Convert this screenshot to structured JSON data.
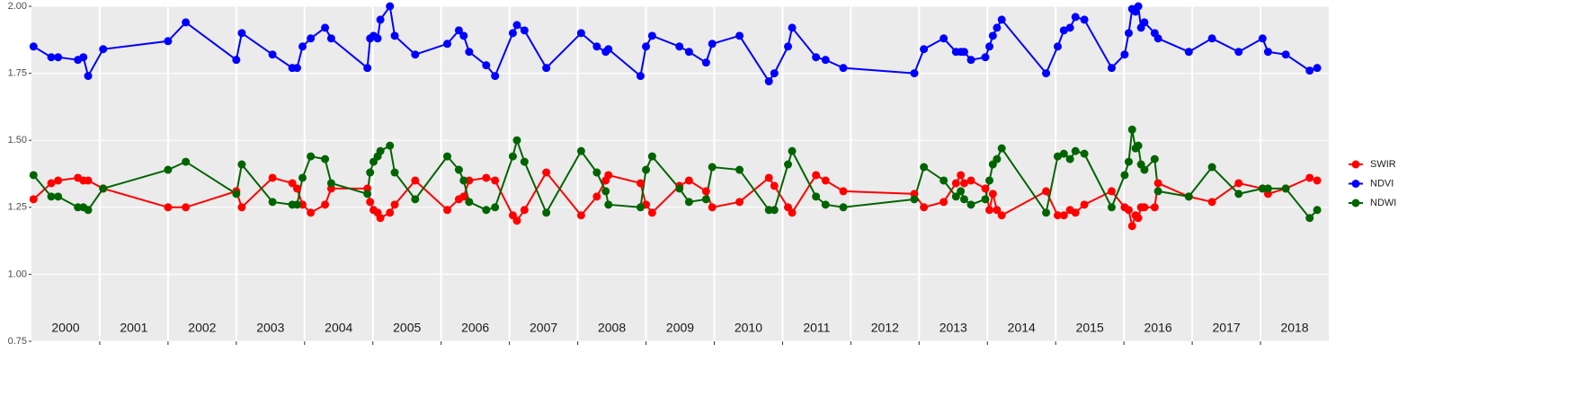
{
  "chart_data": {
    "type": "line",
    "x": [
      2000.03,
      2000.29,
      2000.39,
      2000.68,
      2000.76,
      2000.83,
      2001.05,
      2002.0,
      2002.26,
      2003.0,
      2003.08,
      2003.53,
      2003.82,
      2003.89,
      2003.97,
      2004.09,
      2004.3,
      2004.39,
      2004.92,
      2004.96,
      2005.01,
      2005.07,
      2005.11,
      2005.25,
      2005.32,
      2005.62,
      2006.09,
      2006.26,
      2006.33,
      2006.41,
      2006.66,
      2006.79,
      2007.05,
      2007.11,
      2007.22,
      2007.54,
      2008.05,
      2008.28,
      2008.41,
      2008.45,
      2008.92,
      2009.0,
      2009.09,
      2009.49,
      2009.63,
      2009.88,
      2009.97,
      2010.37,
      2010.8,
      2010.88,
      2011.08,
      2011.14,
      2011.49,
      2011.63,
      2011.89,
      2012.93,
      2013.07,
      2013.36,
      2013.54,
      2013.61,
      2013.66,
      2013.76,
      2013.97,
      2014.03,
      2014.08,
      2014.14,
      2014.21,
      2014.86,
      2015.03,
      2015.12,
      2015.21,
      2015.29,
      2015.42,
      2015.82,
      2016.01,
      2016.07,
      2016.12,
      2016.17,
      2016.21,
      2016.25,
      2016.3,
      2016.45,
      2016.5,
      2016.95,
      2017.29,
      2017.68,
      2018.03,
      2018.11,
      2018.37,
      2018.72,
      2018.83
    ],
    "series": [
      {
        "name": "SWIR",
        "color": "#ff0000",
        "values": [
          1.28,
          1.34,
          1.35,
          1.36,
          1.35,
          1.35,
          1.32,
          1.25,
          1.25,
          1.31,
          1.25,
          1.36,
          1.34,
          1.32,
          1.26,
          1.23,
          1.26,
          1.32,
          1.32,
          1.27,
          1.24,
          1.23,
          1.21,
          1.23,
          1.26,
          1.35,
          1.24,
          1.28,
          1.29,
          1.35,
          1.36,
          1.35,
          1.22,
          1.2,
          1.24,
          1.38,
          1.22,
          1.29,
          1.35,
          1.37,
          1.34,
          1.26,
          1.23,
          1.33,
          1.35,
          1.31,
          1.25,
          1.27,
          1.36,
          1.33,
          1.25,
          1.23,
          1.37,
          1.35,
          1.31,
          1.3,
          1.25,
          1.27,
          1.34,
          1.37,
          1.34,
          1.35,
          1.32,
          1.24,
          1.3,
          1.24,
          1.22,
          1.31,
          1.22,
          1.22,
          1.24,
          1.23,
          1.26,
          1.31,
          1.25,
          1.24,
          1.18,
          1.22,
          1.21,
          1.25,
          1.25,
          1.25,
          1.34,
          1.29,
          1.27,
          1.34,
          1.32,
          1.3,
          1.32,
          1.36,
          1.35
        ]
      },
      {
        "name": "NDVI",
        "color": "#0000ff",
        "values": [
          1.85,
          1.81,
          1.81,
          1.8,
          1.81,
          1.74,
          1.84,
          1.87,
          1.94,
          1.8,
          1.9,
          1.82,
          1.77,
          1.77,
          1.85,
          1.88,
          1.92,
          1.88,
          1.77,
          1.88,
          1.89,
          1.88,
          1.95,
          2.0,
          1.89,
          1.82,
          1.86,
          1.91,
          1.89,
          1.83,
          1.78,
          1.74,
          1.9,
          1.93,
          1.91,
          1.77,
          1.9,
          1.85,
          1.83,
          1.84,
          1.74,
          1.85,
          1.89,
          1.85,
          1.83,
          1.79,
          1.86,
          1.89,
          1.72,
          1.75,
          1.85,
          1.92,
          1.81,
          1.8,
          1.77,
          1.75,
          1.84,
          1.88,
          1.83,
          1.83,
          1.83,
          1.8,
          1.81,
          1.85,
          1.89,
          1.92,
          1.95,
          1.75,
          1.85,
          1.91,
          1.92,
          1.96,
          1.95,
          1.77,
          1.82,
          1.9,
          1.99,
          1.98,
          2.0,
          1.92,
          1.94,
          1.9,
          1.88,
          1.83,
          1.88,
          1.83,
          1.88,
          1.83,
          1.82,
          1.76,
          1.77
        ]
      },
      {
        "name": "NDWI",
        "color": "#006400",
        "values": [
          1.37,
          1.29,
          1.29,
          1.25,
          1.25,
          1.24,
          1.32,
          1.39,
          1.42,
          1.3,
          1.41,
          1.27,
          1.26,
          1.26,
          1.36,
          1.44,
          1.43,
          1.34,
          1.3,
          1.38,
          1.42,
          1.44,
          1.46,
          1.48,
          1.38,
          1.28,
          1.44,
          1.39,
          1.35,
          1.27,
          1.24,
          1.25,
          1.44,
          1.5,
          1.42,
          1.23,
          1.46,
          1.38,
          1.31,
          1.26,
          1.25,
          1.39,
          1.44,
          1.32,
          1.27,
          1.28,
          1.4,
          1.39,
          1.24,
          1.24,
          1.41,
          1.46,
          1.29,
          1.26,
          1.25,
          1.28,
          1.4,
          1.35,
          1.29,
          1.31,
          1.28,
          1.26,
          1.28,
          1.35,
          1.41,
          1.43,
          1.47,
          1.23,
          1.44,
          1.45,
          1.43,
          1.46,
          1.45,
          1.25,
          1.37,
          1.42,
          1.54,
          1.47,
          1.48,
          1.41,
          1.39,
          1.43,
          1.31,
          1.29,
          1.4,
          1.3,
          1.32,
          1.32,
          1.32,
          1.21,
          1.24
        ]
      }
    ],
    "xlim": [
      2000,
      2019
    ],
    "xgrid": [
      2001,
      2002,
      2003,
      2004,
      2005,
      2006,
      2007,
      2008,
      2009,
      2010,
      2011,
      2012,
      2013,
      2014,
      2015,
      2016,
      2017,
      2018
    ],
    "xticks": [
      {
        "value": 2000.5,
        "label": "2000"
      },
      {
        "value": 2001.5,
        "label": "2001"
      },
      {
        "value": 2002.5,
        "label": "2002"
      },
      {
        "value": 2003.5,
        "label": "2003"
      },
      {
        "value": 2004.5,
        "label": "2004"
      },
      {
        "value": 2005.5,
        "label": "2005"
      },
      {
        "value": 2006.5,
        "label": "2006"
      },
      {
        "value": 2007.5,
        "label": "2007"
      },
      {
        "value": 2008.5,
        "label": "2008"
      },
      {
        "value": 2009.5,
        "label": "2009"
      },
      {
        "value": 2010.5,
        "label": "2010"
      },
      {
        "value": 2011.5,
        "label": "2011"
      },
      {
        "value": 2012.5,
        "label": "2012"
      },
      {
        "value": 2013.5,
        "label": "2013"
      },
      {
        "value": 2014.5,
        "label": "2014"
      },
      {
        "value": 2015.5,
        "label": "2015"
      },
      {
        "value": 2016.5,
        "label": "2016"
      },
      {
        "value": 2017.5,
        "label": "2017"
      },
      {
        "value": 2018.5,
        "label": "2018"
      }
    ],
    "ylim": [
      0.75,
      2.0
    ],
    "yticks": [
      {
        "value": 0.75,
        "label": "0.75"
      },
      {
        "value": 1.0,
        "label": "1.00"
      },
      {
        "value": 1.25,
        "label": "1.25"
      },
      {
        "value": 1.5,
        "label": "1.50"
      },
      {
        "value": 1.75,
        "label": "1.75"
      },
      {
        "value": 2.0,
        "label": "2.00"
      }
    ],
    "grid": true,
    "legend": "right"
  }
}
